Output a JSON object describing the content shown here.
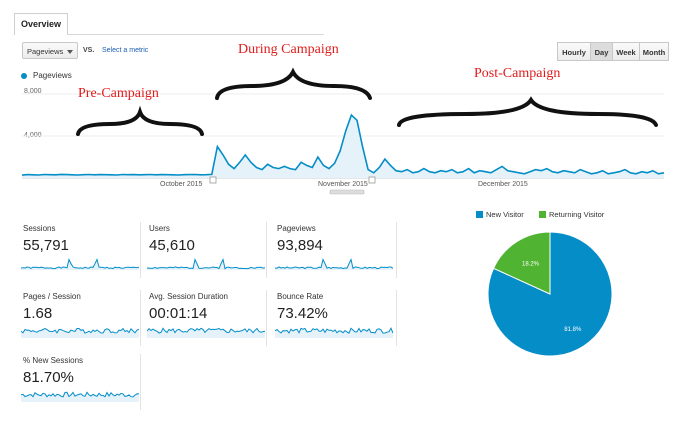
{
  "tab": {
    "label": "Overview"
  },
  "toolbar": {
    "metric": "Pageviews",
    "vs": "VS.",
    "select_metric": "Select a metric",
    "periods": [
      "Hourly",
      "Day",
      "Week",
      "Month"
    ],
    "active_period": "Day"
  },
  "chart_data": {
    "type": "area",
    "series": [
      {
        "name": "Pageviews",
        "values": [
          280,
          320,
          300,
          290,
          330,
          310,
          300,
          340,
          320,
          300,
          290,
          310,
          330,
          300,
          320,
          310,
          300,
          290,
          330,
          310,
          320,
          300,
          310,
          330,
          300,
          320,
          310,
          300,
          290,
          310,
          320,
          330,
          300,
          310,
          340,
          3000,
          2200,
          1300,
          900,
          1500,
          2200,
          1500,
          1000,
          800,
          1300,
          1000,
          900,
          1100,
          900,
          800,
          1500,
          1200,
          1000,
          2000,
          1200,
          900,
          1400,
          2600,
          4500,
          6000,
          5500,
          3000,
          800,
          500,
          1000,
          1800,
          1200,
          700,
          600,
          800,
          500,
          600,
          900,
          600,
          500,
          700,
          600,
          800,
          500,
          600,
          900,
          500,
          700,
          600,
          500,
          800,
          1100,
          700,
          600,
          500,
          400,
          600,
          800,
          700,
          900,
          600,
          500,
          700,
          600,
          500,
          800,
          600,
          400,
          500,
          700,
          400,
          500,
          600,
          800,
          500,
          400,
          600,
          500,
          700,
          400,
          500
        ]
      }
    ],
    "x_ticks": [
      "October 2015",
      "November 2015",
      "December 2015"
    ],
    "y_ticks": [
      "8,000",
      "4,000"
    ],
    "ylim": [
      0,
      8000
    ],
    "legend_placement": "top-left",
    "grid": true
  },
  "annotations": {
    "pre": "Pre-Campaign",
    "during": "During Campaign",
    "post": "Post-Campaign"
  },
  "metrics": [
    {
      "label": "Sessions",
      "value": "55,791"
    },
    {
      "label": "Users",
      "value": "45,610"
    },
    {
      "label": "Pageviews",
      "value": "93,894"
    },
    {
      "label": "Pages / Session",
      "value": "1.68"
    },
    {
      "label": "Avg. Session Duration",
      "value": "00:01:14"
    },
    {
      "label": "Bounce Rate",
      "value": "73.42%"
    },
    {
      "label": "% New Sessions",
      "value": "81.70%"
    }
  ],
  "pie": {
    "legend": [
      {
        "label": "New Visitor",
        "color": "#058dc7"
      },
      {
        "label": "Returning Visitor",
        "color": "#50b432"
      }
    ],
    "slices": [
      {
        "label": "New Visitor",
        "value": 81.8,
        "text": "81.8%",
        "color": "#058dc7"
      },
      {
        "label": "Returning Visitor",
        "value": 18.2,
        "text": "18.2%",
        "color": "#50b432"
      }
    ]
  },
  "colors": {
    "line": "#058dc7",
    "fill": "#e6f2fa",
    "annotation": "#e11b1b"
  }
}
